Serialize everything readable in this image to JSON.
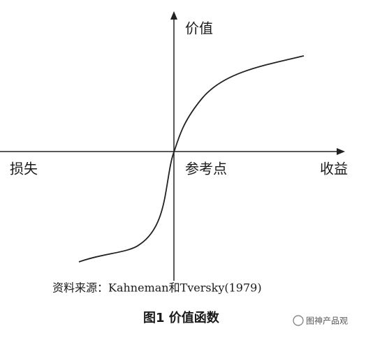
{
  "labels": {
    "y_axis": "价值",
    "loss": "损失",
    "reference": "参考点",
    "gain": "收益"
  },
  "source": "资料来源：Kahneman和Tversky(1979)",
  "caption": "图1  价值函数",
  "watermark": "图神产品观"
}
